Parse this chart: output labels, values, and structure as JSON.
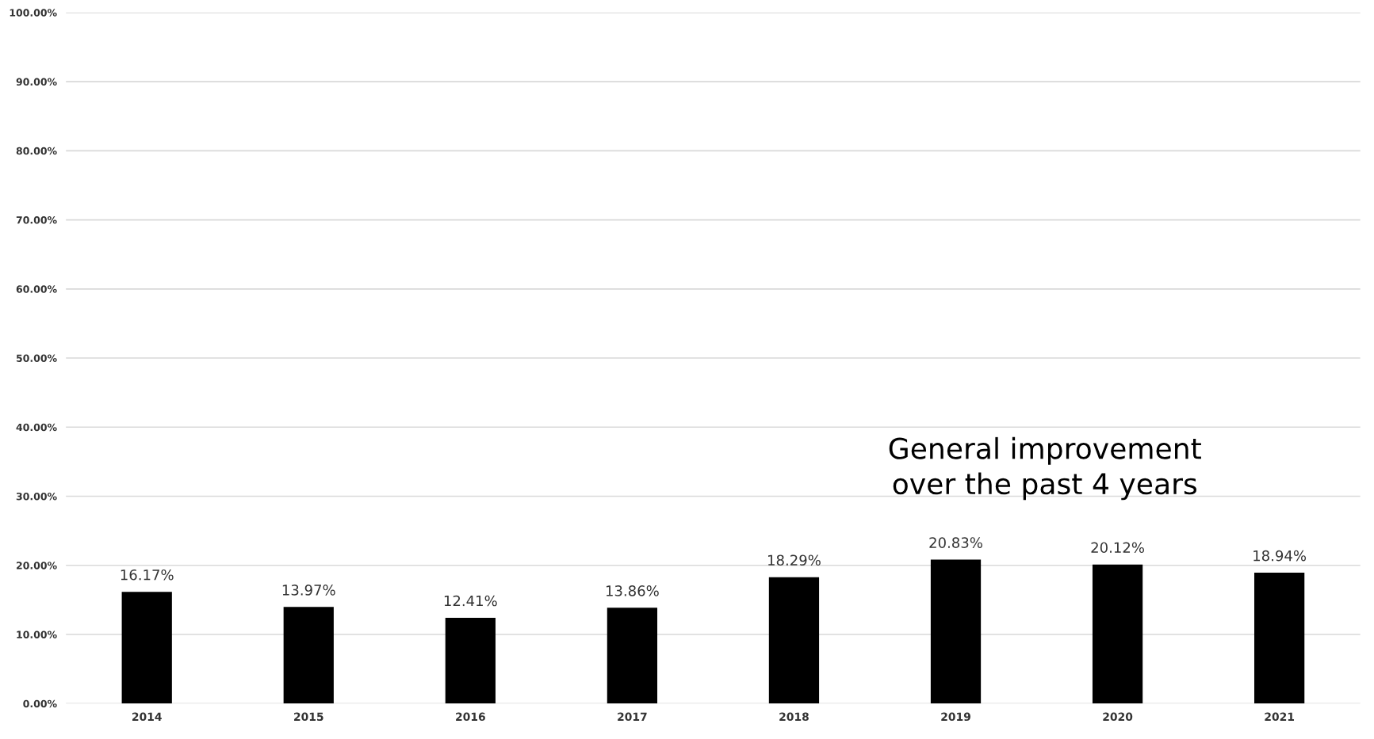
{
  "chart_data": {
    "type": "bar",
    "categories": [
      "2014",
      "2015",
      "2016",
      "2017",
      "2018",
      "2019",
      "2020",
      "2021"
    ],
    "values": [
      16.17,
      13.97,
      12.41,
      13.86,
      18.29,
      20.83,
      20.12,
      18.94
    ],
    "value_labels": [
      "16.17%",
      "13.97%",
      "12.41%",
      "13.86%",
      "18.29%",
      "20.83%",
      "20.12%",
      "18.94%"
    ],
    "color": "#000000",
    "ylim": [
      0,
      100
    ],
    "yticks": [
      {
        "value": 0,
        "label": "0.00%"
      },
      {
        "value": 10,
        "label": "10.00%"
      },
      {
        "value": 20,
        "label": "20.00%"
      },
      {
        "value": 30,
        "label": "30.00%"
      },
      {
        "value": 40,
        "label": "40.00%"
      },
      {
        "value": 50,
        "label": "50.00%"
      },
      {
        "value": 60,
        "label": "60.00%"
      },
      {
        "value": 70,
        "label": "70.00%"
      },
      {
        "value": 80,
        "label": "80.00%"
      },
      {
        "value": 90,
        "label": "90.00%"
      },
      {
        "value": 100,
        "label": "100.00%"
      }
    ],
    "grid": "y",
    "annotations": [
      "General improvement\nover the past 4 years"
    ]
  }
}
